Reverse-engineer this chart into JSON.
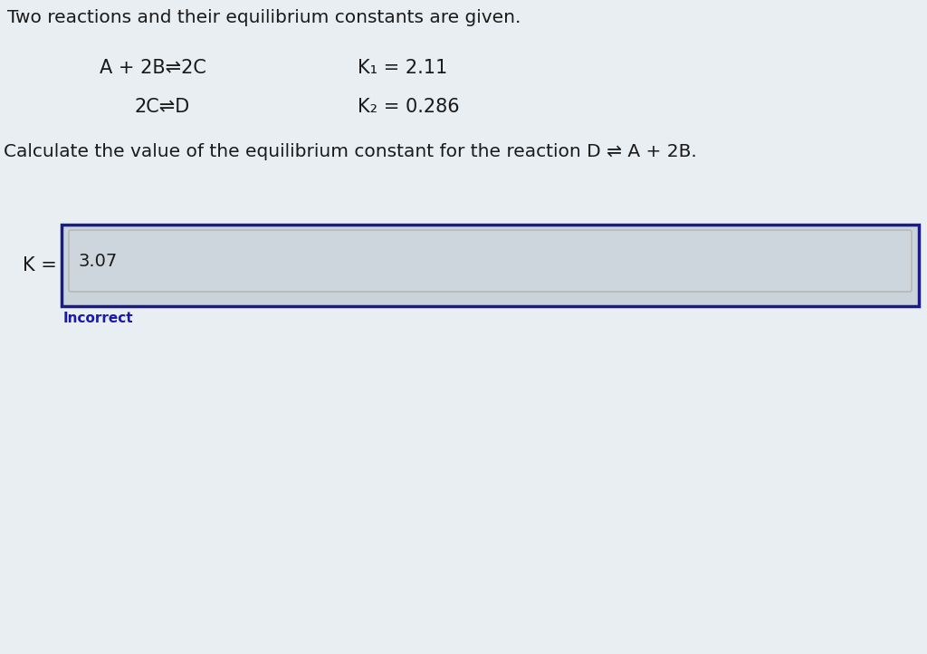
{
  "bg_color": "#e8eef2",
  "top_text": "Two reactions and their equilibrium constants are given.",
  "reaction1": "A + 2B⇌2C",
  "k1_label": "K₁ = 2.11",
  "reaction2": "2C⇌D",
  "k2_label": "K₂ = 0.286",
  "question": "Calculate the value of the equilibrium constant for the reaction D ⇌ A + 2B.",
  "k_label": "K =",
  "answer": "3.07",
  "incorrect_text": "Incorrect",
  "text_color": "#1a1a1a",
  "incorrect_color": "#1a1aaa",
  "box_border_color": "#1a1a88",
  "inner_box_bg": "#d8dfe4",
  "inner_input_bg": "#cdd6dc",
  "outer_box_bg": "#c8d4da"
}
